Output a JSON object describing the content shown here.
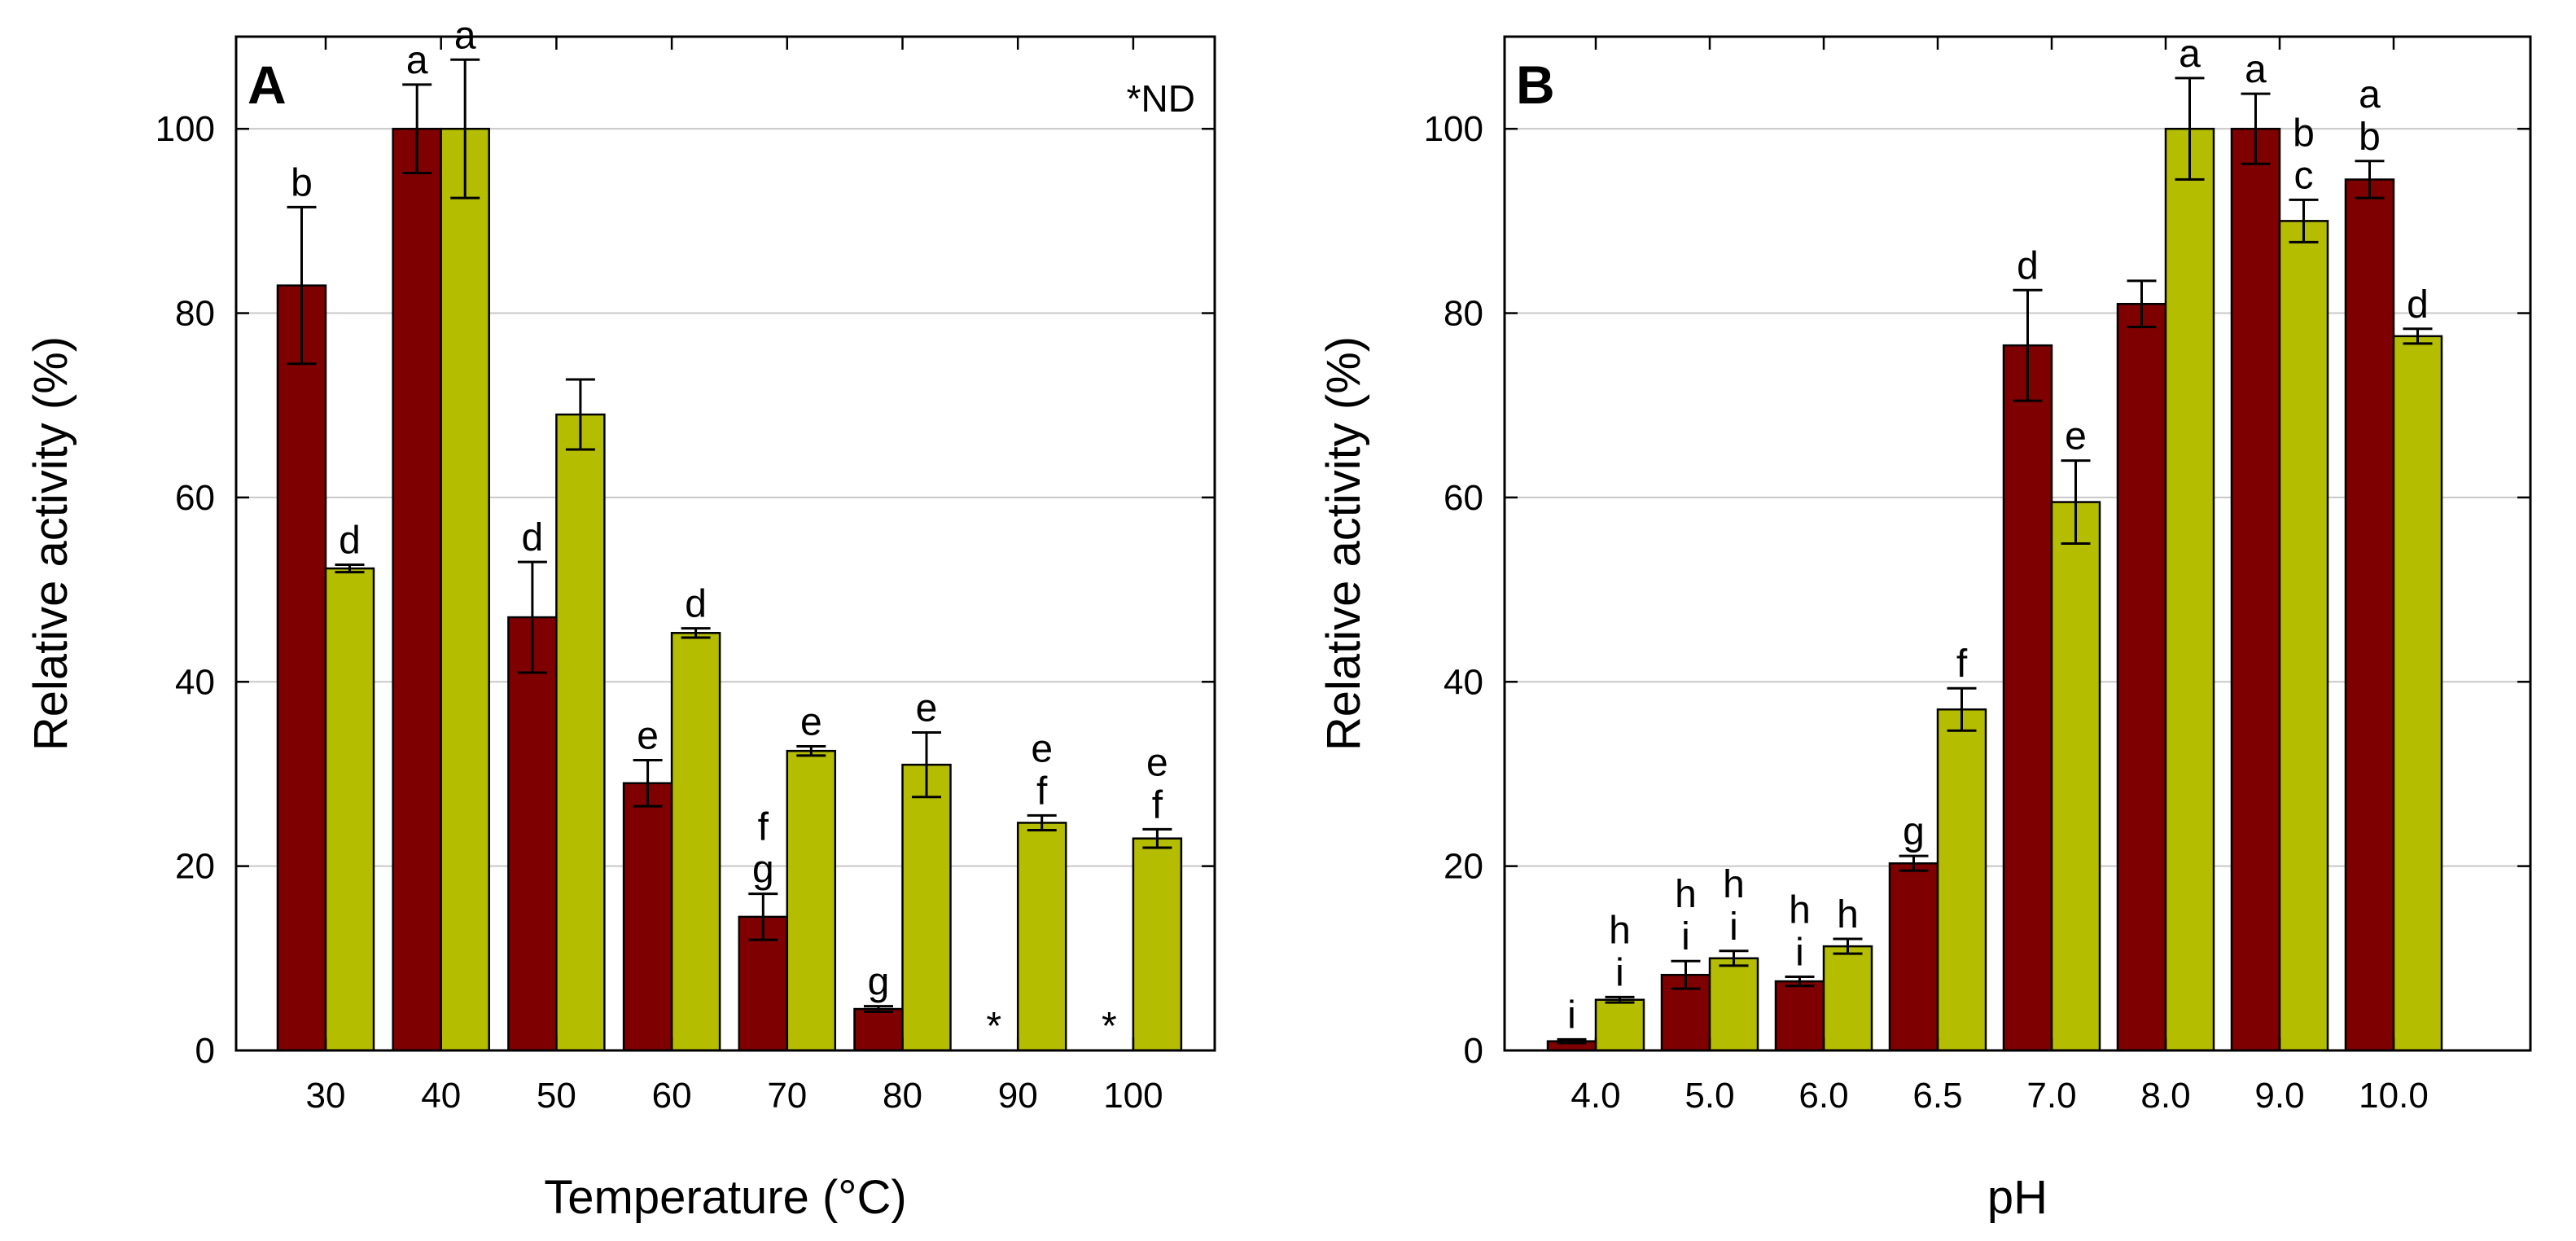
{
  "chart_data": [
    {
      "type": "bar",
      "panel_label": "A",
      "note": "*ND",
      "xlabel": "Temperature (°C)",
      "ylabel": "Relative activity (%)",
      "ylim": [
        0,
        110
      ],
      "yticks": [
        0,
        20,
        40,
        60,
        80,
        100
      ],
      "grid": true,
      "categories": [
        "30",
        "40",
        "50",
        "60",
        "70",
        "80",
        "90",
        "100"
      ],
      "series": [
        {
          "name": "series-1",
          "color": "#7f0000",
          "values": [
            83,
            100,
            47,
            29,
            14.5,
            4.5,
            null,
            null
          ],
          "errors": [
            8.5,
            4.8,
            6,
            2.5,
            2.5,
            0.3,
            null,
            null
          ],
          "labels": [
            [
              "b"
            ],
            [
              "a"
            ],
            [
              "d"
            ],
            [
              "e"
            ],
            [
              "f",
              "g"
            ],
            [
              "g"
            ],
            [
              "*"
            ],
            [
              "*"
            ]
          ]
        },
        {
          "name": "series-2",
          "color": "#b5bd00",
          "values": [
            52.3,
            100,
            69,
            45.3,
            32.5,
            31,
            24.7,
            23
          ],
          "errors": [
            0.4,
            7.5,
            3.8,
            0.5,
            0.5,
            3.5,
            0.8,
            1
          ],
          "labels": [
            [
              "d"
            ],
            [
              "a"
            ],
            [],
            [
              "d"
            ],
            [
              "e"
            ],
            [
              "e"
            ],
            [
              "e",
              "f"
            ],
            [
              "e",
              "f"
            ]
          ]
        }
      ]
    },
    {
      "type": "bar",
      "panel_label": "B",
      "note": "",
      "xlabel": "pH",
      "ylabel": "Relative activity (%)",
      "ylim": [
        0,
        110
      ],
      "yticks": [
        0,
        20,
        40,
        60,
        80,
        100
      ],
      "grid": true,
      "categories": [
        "4.0",
        "5.0",
        "6.0",
        "6.5",
        "7.0",
        "8.0",
        "9.0",
        "10.0"
      ],
      "series": [
        {
          "name": "series-1",
          "color": "#7f0000",
          "values": [
            1,
            8.2,
            7.5,
            20.3,
            76.5,
            81,
            100,
            94.5
          ],
          "errors": [
            0.2,
            1.5,
            0.5,
            0.8,
            6,
            2.5,
            3.8,
            2
          ],
          "labels": [
            [
              "i"
            ],
            [
              "h",
              "i"
            ],
            [
              "h",
              "i"
            ],
            [
              "g"
            ],
            [
              "d"
            ],
            [],
            [
              "a"
            ],
            [
              "a",
              "b"
            ]
          ]
        },
        {
          "name": "series-2",
          "color": "#b5bd00",
          "values": [
            5.5,
            10,
            11.3,
            37,
            59.5,
            100,
            90,
            77.5
          ],
          "errors": [
            0.3,
            0.8,
            0.8,
            2.3,
            4.5,
            5.5,
            2.3,
            0.8
          ],
          "labels": [
            [
              "h",
              "i"
            ],
            [
              "h",
              "i"
            ],
            [
              "h"
            ],
            [
              "f"
            ],
            [
              "e"
            ],
            [
              "a"
            ],
            [
              "b",
              "c"
            ],
            [
              "d"
            ]
          ]
        }
      ]
    }
  ]
}
